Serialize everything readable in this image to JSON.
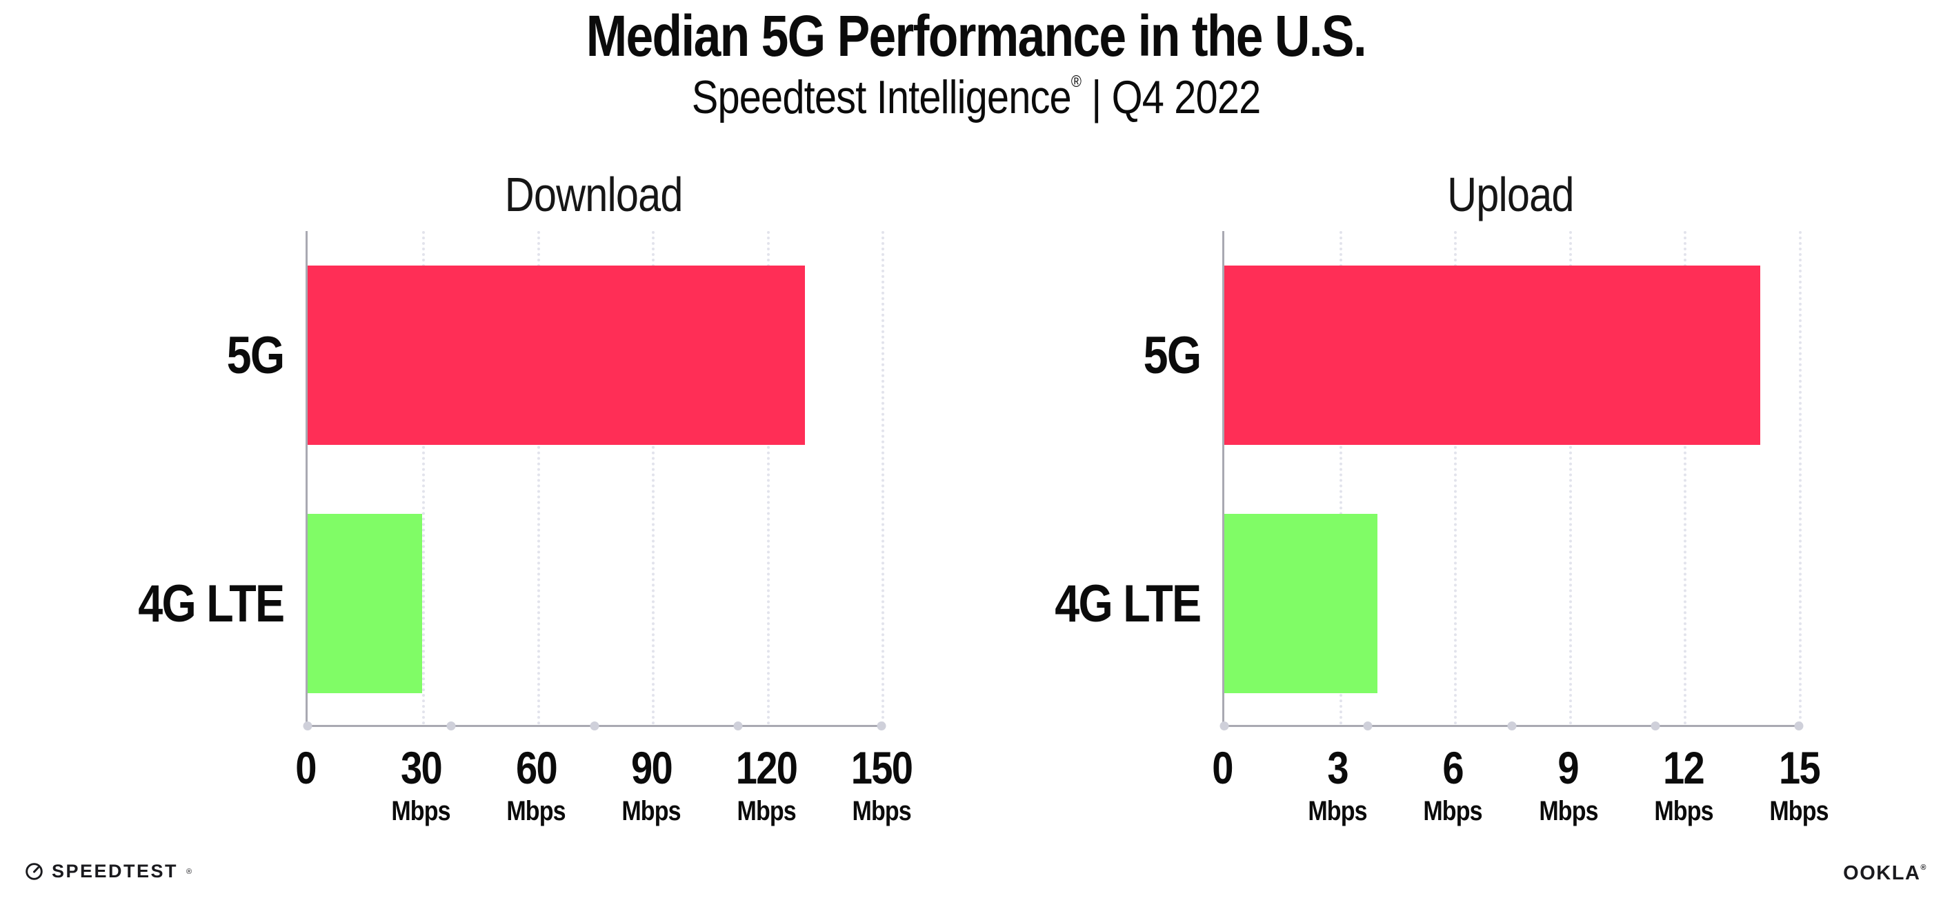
{
  "header": {
    "title": "Median 5G Performance in the U.S.",
    "subtitle_brand": "Speedtest Intelligence",
    "subtitle_reg": "®",
    "subtitle_rest": " | Q4 2022"
  },
  "chart_data": [
    {
      "type": "bar",
      "orientation": "horizontal",
      "title": "Download",
      "categories": [
        "5G",
        "4G LTE"
      ],
      "values": [
        130,
        30
      ],
      "unit": "Mbps",
      "xlim": [
        0,
        150
      ],
      "xticks": [
        0,
        30,
        60,
        90,
        120,
        150
      ],
      "bar_colors": [
        "#ff2e56",
        "#80fc66"
      ],
      "grid": "vertical-dotted",
      "legend": "none"
    },
    {
      "type": "bar",
      "orientation": "horizontal",
      "title": "Upload",
      "categories": [
        "5G",
        "4G LTE"
      ],
      "values": [
        14,
        4
      ],
      "unit": "Mbps",
      "xlim": [
        0,
        15
      ],
      "xticks": [
        0,
        3,
        6,
        9,
        12,
        15
      ],
      "bar_colors": [
        "#ff2e56",
        "#80fc66"
      ],
      "grid": "vertical-dotted",
      "legend": "none"
    }
  ],
  "footer": {
    "speedtest_label": "SPEEDTEST",
    "speedtest_mark": "®",
    "ookla_label": "OOKLA",
    "ookla_mark": "®"
  },
  "colors": {
    "bar_5g": "#ff2e56",
    "bar_4g_lte": "#80fc66",
    "axis": "#a9a9b2",
    "gridline": "#e2e3ec",
    "text": "#0b0b0b"
  }
}
